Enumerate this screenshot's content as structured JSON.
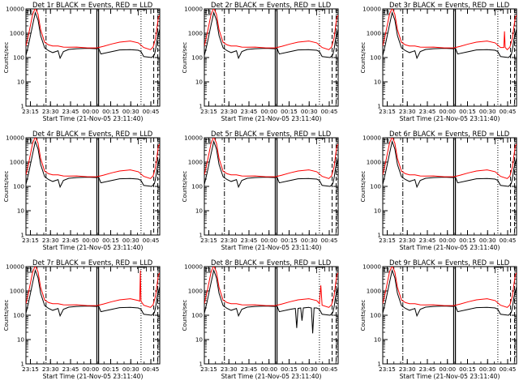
{
  "chart_data": {
    "type": "line",
    "layout": "3x3 grid",
    "shared": {
      "ylabel": "Counts/sec",
      "xlabel": "Start Time (21-Nov-05 23:11:40)",
      "yscale": "log",
      "ylim": [
        1,
        10000
      ],
      "yticks": [
        1,
        10,
        100,
        1000,
        10000
      ],
      "ytick_labels": [
        "1",
        "10",
        "100",
        "1000",
        "10000"
      ],
      "xlim_min": [
        0,
        100
      ],
      "xticks_min": [
        3.33,
        18.33,
        33.33,
        48.33,
        63.33,
        78.33,
        93.33
      ],
      "xtick_labels": [
        "23:15",
        "23:30",
        "23:45",
        "00:00",
        "00:15",
        "00:30",
        "00:45"
      ],
      "series_colors": {
        "events": "#000000",
        "lld": "#ff0000"
      },
      "markers": {
        "dashdot_min": 15,
        "solid_min": [
          53,
          54.3
        ],
        "dotted_min": 86,
        "dashed_min": [
          95.5,
          98.5
        ]
      }
    },
    "panels": [
      {
        "title": "Det 1r BLACK = Events, RED = LLD",
        "events_x": [
          0,
          2,
          5,
          7,
          9,
          11,
          14,
          17,
          20,
          24,
          25.5,
          28,
          32,
          38,
          46,
          53,
          54.3,
          56,
          64,
          70,
          78,
          84,
          86,
          88,
          94,
          96,
          97,
          98,
          99,
          100
        ],
        "events_y": [
          120,
          350,
          2200,
          7000,
          3500,
          800,
          250,
          190,
          160,
          190,
          95,
          175,
          215,
          230,
          240,
          230,
          240,
          140,
          175,
          205,
          210,
          200,
          175,
          110,
          100,
          130,
          220,
          550,
          900,
          1500
        ],
        "lld_x": [
          0,
          2,
          5,
          7,
          9,
          11,
          14,
          17,
          20,
          24,
          28,
          32,
          38,
          46,
          53,
          58,
          64,
          70,
          78,
          84,
          88,
          93,
          95,
          97,
          98,
          99,
          100
        ],
        "lld_y": [
          300,
          900,
          6000,
          11000,
          6000,
          1400,
          420,
          330,
          300,
          300,
          270,
          265,
          270,
          250,
          250,
          290,
          360,
          430,
          480,
          400,
          260,
          210,
          270,
          650,
          1800,
          4500,
          5500
        ]
      },
      {
        "title": "Det 2r BLACK = Events, RED = LLD",
        "events_x": [
          0,
          2,
          5,
          7,
          9,
          11,
          14,
          17,
          20,
          24,
          25.5,
          28,
          32,
          38,
          46,
          53,
          54.3,
          56,
          64,
          70,
          78,
          84,
          86,
          88,
          94,
          96,
          97,
          98,
          99,
          100
        ],
        "events_y": [
          120,
          350,
          2200,
          7000,
          3500,
          800,
          250,
          190,
          160,
          190,
          95,
          175,
          215,
          230,
          240,
          230,
          240,
          140,
          175,
          205,
          210,
          200,
          175,
          110,
          100,
          130,
          220,
          550,
          900,
          1500
        ],
        "lld_x": [
          0,
          2,
          5,
          7,
          9,
          11,
          14,
          17,
          20,
          24,
          28,
          32,
          38,
          46,
          53,
          58,
          64,
          70,
          78,
          84,
          88,
          93,
          95,
          97,
          98,
          99,
          100
        ],
        "lld_y": [
          300,
          900,
          6000,
          11000,
          6000,
          1400,
          420,
          330,
          300,
          300,
          270,
          265,
          270,
          250,
          250,
          290,
          360,
          430,
          480,
          400,
          260,
          210,
          270,
          650,
          1800,
          4500,
          5500
        ]
      },
      {
        "title": "Det 3r BLACK = Events, RED = LLD",
        "events_x": [
          0,
          2,
          5,
          7,
          9,
          11,
          14,
          17,
          20,
          24,
          25.5,
          28,
          32,
          38,
          46,
          53,
          54.3,
          56,
          64,
          70,
          78,
          84,
          86,
          88,
          94,
          96,
          97,
          98,
          99,
          100
        ],
        "events_y": [
          120,
          350,
          2200,
          7000,
          3500,
          800,
          250,
          190,
          160,
          190,
          95,
          175,
          215,
          230,
          240,
          230,
          240,
          140,
          175,
          205,
          210,
          200,
          175,
          110,
          100,
          130,
          220,
          550,
          900,
          1500
        ],
        "lld_x": [
          0,
          2,
          5,
          7,
          9,
          11,
          14,
          17,
          20,
          24,
          28,
          32,
          38,
          46,
          53,
          58,
          64,
          70,
          78,
          84,
          88,
          90.5,
          91,
          91.5,
          93,
          95,
          97,
          98,
          99,
          100
        ],
        "lld_y": [
          300,
          900,
          6000,
          11000,
          6000,
          1400,
          420,
          330,
          300,
          300,
          270,
          265,
          270,
          250,
          250,
          290,
          360,
          430,
          480,
          400,
          260,
          260,
          1200,
          260,
          210,
          270,
          650,
          1800,
          4500,
          5500
        ]
      },
      {
        "title": "Det 4r BLACK = Events, RED = LLD",
        "events_x": [
          0,
          2,
          5,
          7,
          9,
          11,
          14,
          17,
          20,
          24,
          25.5,
          28,
          32,
          38,
          46,
          53,
          54.3,
          56,
          64,
          70,
          78,
          84,
          86,
          88,
          94,
          96,
          97,
          98,
          99,
          100
        ],
        "events_y": [
          120,
          350,
          2200,
          7000,
          3500,
          800,
          250,
          190,
          160,
          190,
          95,
          175,
          215,
          230,
          240,
          230,
          240,
          140,
          175,
          205,
          210,
          200,
          175,
          110,
          100,
          130,
          220,
          550,
          900,
          1500
        ],
        "lld_x": [
          0,
          2,
          5,
          7,
          9,
          11,
          14,
          17,
          20,
          24,
          28,
          32,
          38,
          46,
          53,
          58,
          64,
          70,
          78,
          84,
          88,
          93,
          95,
          97,
          98,
          99,
          100
        ],
        "lld_y": [
          300,
          900,
          6000,
          11000,
          6000,
          1400,
          420,
          330,
          300,
          300,
          270,
          265,
          270,
          250,
          250,
          290,
          360,
          430,
          480,
          400,
          260,
          210,
          270,
          650,
          1800,
          4500,
          5500
        ]
      },
      {
        "title": "Det 5r BLACK = Events, RED = LLD",
        "events_x": [
          0,
          2,
          5,
          7,
          9,
          11,
          14,
          17,
          20,
          24,
          25.5,
          28,
          32,
          38,
          46,
          53,
          54.3,
          56,
          64,
          70,
          78,
          84,
          86,
          88,
          94,
          96,
          97,
          98,
          99,
          100
        ],
        "events_y": [
          120,
          350,
          2200,
          7000,
          3500,
          800,
          250,
          190,
          160,
          190,
          95,
          175,
          215,
          230,
          240,
          230,
          240,
          140,
          175,
          205,
          210,
          200,
          175,
          110,
          100,
          130,
          220,
          550,
          900,
          1500
        ],
        "lld_x": [
          0,
          2,
          5,
          7,
          9,
          11,
          14,
          17,
          20,
          24,
          28,
          32,
          38,
          46,
          53,
          58,
          64,
          70,
          78,
          84,
          88,
          93,
          95,
          97,
          98,
          99,
          100
        ],
        "lld_y": [
          300,
          900,
          6000,
          11000,
          6000,
          1400,
          420,
          330,
          300,
          300,
          270,
          265,
          270,
          250,
          250,
          290,
          360,
          430,
          480,
          400,
          260,
          210,
          270,
          650,
          1800,
          4500,
          5500
        ]
      },
      {
        "title": "Det 6r BLACK = Events, RED = LLD",
        "events_x": [
          0,
          2,
          5,
          7,
          9,
          11,
          14,
          17,
          20,
          24,
          25.5,
          28,
          32,
          38,
          46,
          53,
          54.3,
          56,
          64,
          70,
          78,
          84,
          86,
          88,
          94,
          96,
          97,
          98,
          99,
          100
        ],
        "events_y": [
          120,
          350,
          2200,
          7000,
          3500,
          800,
          250,
          190,
          160,
          190,
          95,
          175,
          215,
          230,
          240,
          230,
          240,
          140,
          175,
          205,
          210,
          200,
          175,
          110,
          100,
          130,
          220,
          550,
          900,
          1500
        ],
        "lld_x": [
          0,
          2,
          5,
          7,
          9,
          11,
          14,
          17,
          20,
          24,
          28,
          32,
          38,
          46,
          53,
          58,
          64,
          70,
          78,
          84,
          88,
          93,
          95,
          97,
          98,
          99,
          100
        ],
        "lld_y": [
          300,
          900,
          6000,
          11000,
          6000,
          1400,
          420,
          330,
          300,
          300,
          270,
          265,
          270,
          250,
          250,
          290,
          360,
          430,
          480,
          400,
          260,
          210,
          270,
          650,
          1800,
          4500,
          5500
        ]
      },
      {
        "title": "Det 7r BLACK = Events, RED = LLD",
        "events_x": [
          0,
          2,
          5,
          7,
          9,
          11,
          14,
          17,
          20,
          24,
          25.5,
          28,
          32,
          38,
          46,
          53,
          54.3,
          56,
          64,
          70,
          78,
          84,
          86,
          88,
          94,
          96,
          97,
          98,
          99,
          100
        ],
        "events_y": [
          120,
          350,
          2200,
          7000,
          3500,
          800,
          250,
          190,
          160,
          190,
          95,
          175,
          215,
          230,
          240,
          230,
          240,
          140,
          175,
          205,
          210,
          200,
          175,
          110,
          100,
          130,
          220,
          550,
          900,
          1500
        ],
        "lld_x": [
          0,
          2,
          5,
          7,
          9,
          11,
          14,
          17,
          20,
          24,
          28,
          32,
          38,
          46,
          53,
          58,
          64,
          70,
          78,
          84,
          85,
          85.5,
          86,
          88,
          93,
          95,
          97,
          98,
          99,
          100
        ],
        "lld_y": [
          300,
          900,
          6000,
          11000,
          6000,
          1400,
          420,
          330,
          300,
          300,
          270,
          265,
          270,
          250,
          250,
          290,
          360,
          430,
          480,
          400,
          380,
          7000,
          380,
          260,
          210,
          270,
          650,
          1800,
          4500,
          5500
        ]
      },
      {
        "title": "Det 8r BLACK = Events, RED = LLD",
        "events_x": [
          0,
          2,
          5,
          7,
          9,
          11,
          14,
          17,
          20,
          24,
          25.5,
          28,
          32,
          38,
          46,
          53,
          54.3,
          56,
          64,
          68,
          69,
          70,
          72,
          73,
          74,
          78,
          80,
          81,
          82,
          84,
          86,
          88,
          94,
          96,
          97,
          98,
          99,
          100
        ],
        "events_y": [
          120,
          350,
          2200,
          7000,
          3500,
          800,
          250,
          190,
          160,
          190,
          95,
          175,
          215,
          230,
          240,
          230,
          240,
          140,
          175,
          190,
          30,
          190,
          200,
          60,
          200,
          210,
          200,
          18,
          200,
          200,
          175,
          110,
          100,
          130,
          220,
          550,
          900,
          1500
        ],
        "lld_x": [
          0,
          2,
          5,
          7,
          9,
          11,
          14,
          17,
          20,
          24,
          28,
          32,
          38,
          46,
          53,
          58,
          64,
          70,
          78,
          84,
          86,
          87,
          88,
          93,
          95,
          97,
          98,
          99,
          100
        ],
        "lld_y": [
          300,
          900,
          6000,
          11000,
          6000,
          1400,
          420,
          330,
          300,
          300,
          270,
          265,
          270,
          250,
          250,
          290,
          360,
          430,
          480,
          400,
          300,
          1700,
          260,
          210,
          270,
          650,
          1800,
          4500,
          5500
        ]
      },
      {
        "title": "Det 9r BLACK = Events, RED = LLD",
        "events_x": [
          0,
          2,
          5,
          7,
          9,
          11,
          14,
          17,
          20,
          24,
          25.5,
          28,
          32,
          38,
          46,
          53,
          54.3,
          56,
          64,
          70,
          78,
          84,
          86,
          88,
          94,
          96,
          97,
          98,
          99,
          100
        ],
        "events_y": [
          120,
          350,
          2200,
          7000,
          3500,
          800,
          250,
          190,
          160,
          190,
          95,
          175,
          215,
          230,
          240,
          230,
          240,
          140,
          175,
          205,
          210,
          200,
          175,
          110,
          100,
          130,
          220,
          550,
          900,
          1500
        ],
        "lld_x": [
          0,
          2,
          5,
          7,
          9,
          11,
          14,
          17,
          20,
          24,
          28,
          32,
          38,
          46,
          53,
          58,
          64,
          70,
          78,
          84,
          88,
          93,
          95,
          97,
          98,
          99,
          100
        ],
        "lld_y": [
          300,
          900,
          6000,
          11000,
          6000,
          1400,
          420,
          330,
          300,
          300,
          270,
          265,
          270,
          250,
          250,
          290,
          360,
          430,
          480,
          400,
          260,
          210,
          270,
          650,
          1800,
          4500,
          5500
        ]
      }
    ]
  }
}
